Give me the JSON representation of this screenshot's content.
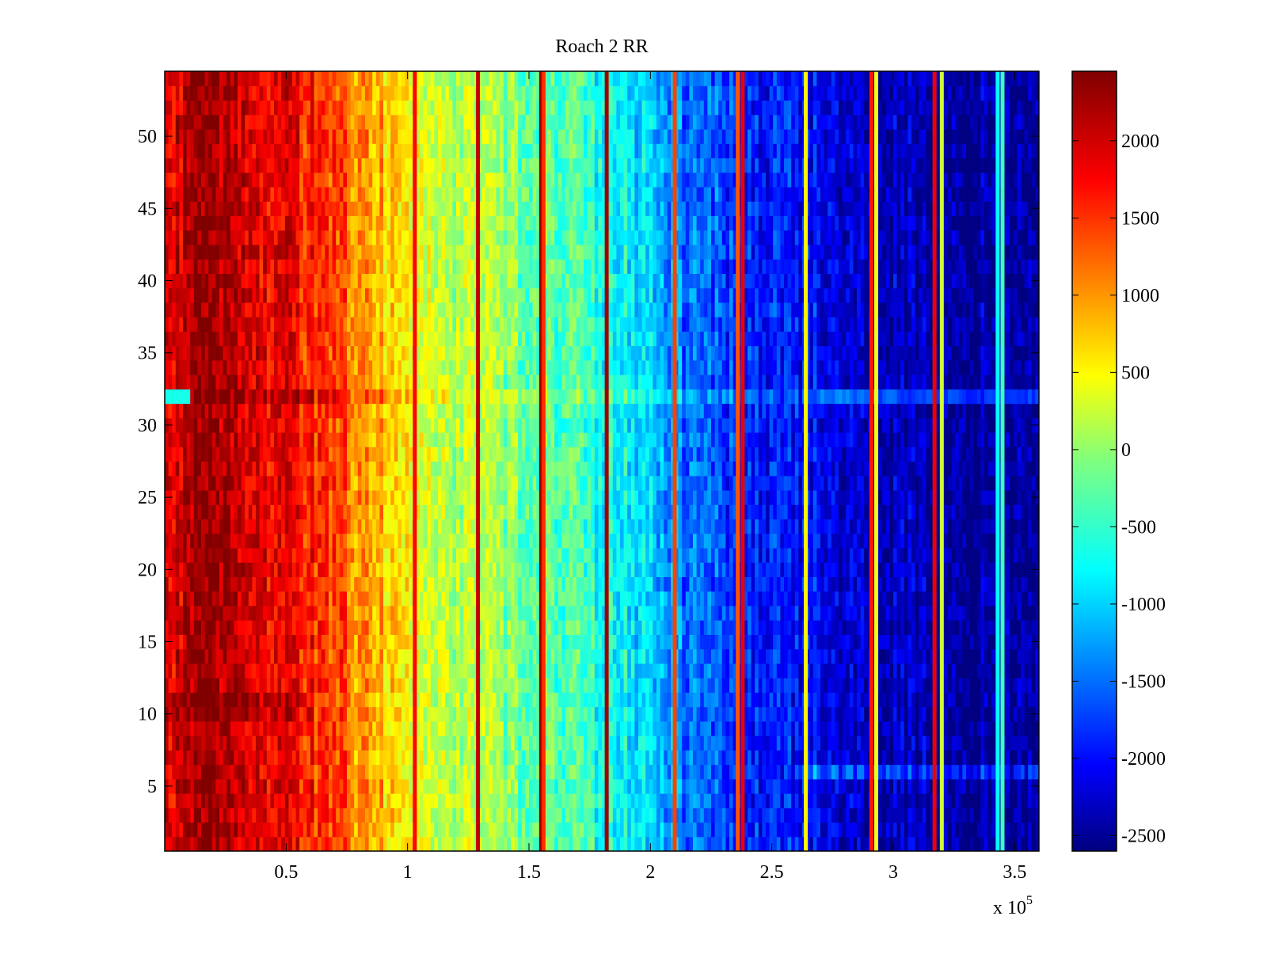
{
  "chart_data": {
    "type": "heatmap",
    "title": "Roach 2 RR",
    "xlabel": "",
    "ylabel": "",
    "x_multiplier_label": "x 10",
    "x_multiplier_exponent": "5",
    "xlim": [
      0,
      3.6
    ],
    "ylim": [
      0.5,
      54.5
    ],
    "n_rows": 54,
    "x_ticks": [
      0.5,
      1,
      1.5,
      2,
      2.5,
      3,
      3.5
    ],
    "x_tick_labels": [
      "0.5",
      "1",
      "1.5",
      "2",
      "2.5",
      "3",
      "3.5"
    ],
    "y_ticks": [
      5,
      10,
      15,
      20,
      25,
      30,
      35,
      40,
      45,
      50
    ],
    "y_tick_labels": [
      "5",
      "10",
      "15",
      "20",
      "25",
      "30",
      "35",
      "40",
      "45",
      "50"
    ],
    "colorbar": {
      "colormap": "jet",
      "clim": [
        -2600,
        2450
      ],
      "ticks": [
        -2500,
        -2000,
        -1500,
        -1000,
        -500,
        0,
        500,
        1000,
        1500,
        2000
      ],
      "tick_labels": [
        "-2500",
        "-2000",
        "-1500",
        "-1000",
        "-500",
        "0",
        "500",
        "1000",
        "1500",
        "2000"
      ]
    },
    "trend": {
      "x": [
        0.0,
        0.1,
        0.2,
        0.3,
        0.5,
        0.7,
        0.8,
        1.0,
        1.05,
        1.3,
        1.6,
        1.9,
        2.1,
        2.4,
        2.7,
        3.0,
        3.3,
        3.6
      ],
      "value": [
        1900,
        2150,
        2250,
        2000,
        1900,
        1500,
        1100,
        700,
        400,
        100,
        -300,
        -700,
        -1300,
        -1800,
        -2000,
        -2300,
        -2450,
        -2400
      ]
    },
    "vertical_stripes": [
      {
        "x": 1.03,
        "value": 1800
      },
      {
        "x": 1.29,
        "value": 2100
      },
      {
        "x": 1.55,
        "value": 2300
      },
      {
        "x": 1.56,
        "value": 1600
      },
      {
        "x": 1.82,
        "value": 2300
      },
      {
        "x": 2.1,
        "value": 1500
      },
      {
        "x": 2.36,
        "value": 1400
      },
      {
        "x": 2.38,
        "value": 1900
      },
      {
        "x": 2.64,
        "value": 600
      },
      {
        "x": 2.91,
        "value": 1700
      },
      {
        "x": 2.93,
        "value": 500
      },
      {
        "x": 3.17,
        "value": 1900
      },
      {
        "x": 3.2,
        "value": 300
      },
      {
        "x": 3.43,
        "value": -700
      },
      {
        "x": 3.45,
        "value": -400
      }
    ],
    "anomalous_rows": [
      {
        "row": 32,
        "note": "cyan band on left, warmer on right"
      },
      {
        "row": 6,
        "note": "lighter band across right half"
      }
    ]
  }
}
